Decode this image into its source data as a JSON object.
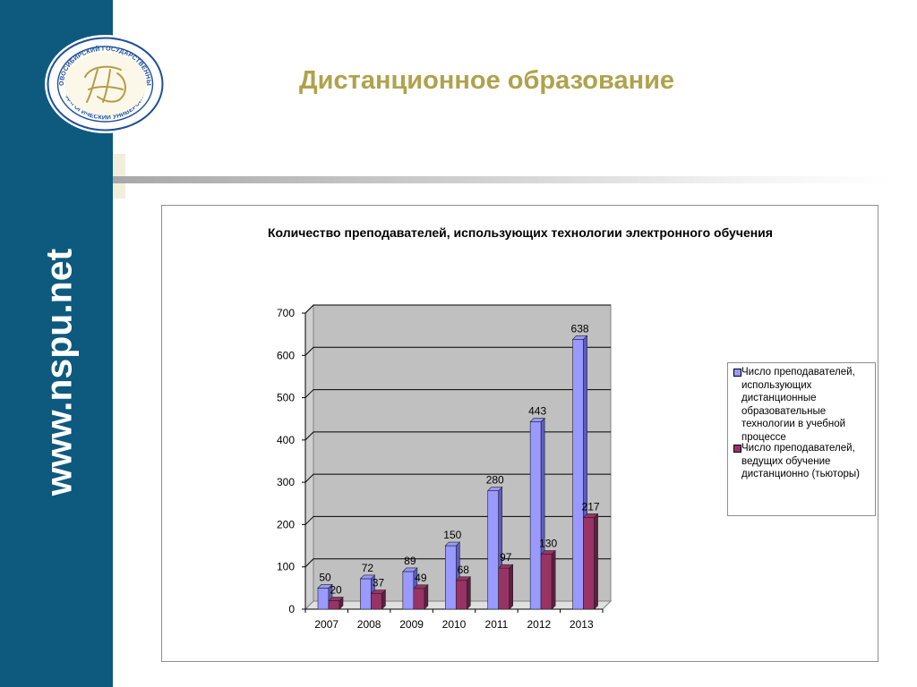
{
  "page": {
    "title": "Дистанционное образование",
    "side_url": "www.nspu.net"
  },
  "logo": {
    "arc_text_top": "НОВОСИБИРСКИЙ ГОСУДАРСТВЕННЫЙ",
    "arc_text_bottom": "ПЕДАГОГИЧЕСКИЙ УНИВЕРСИТЕТ"
  },
  "colors": {
    "sidebar": "#0d5a7e",
    "title": "#b0a24c",
    "series1": "#9999ff",
    "series1_side": "#5c5cc4",
    "series2": "#993366",
    "series2_side": "#5e1f3f",
    "plot_bg": "#c0c0c0"
  },
  "chart_data": {
    "type": "bar",
    "title": "Количество преподавателей, использующих технологии электронного обучения",
    "categories": [
      "2007",
      "2008",
      "2009",
      "2010",
      "2011",
      "2012",
      "2013"
    ],
    "ylim": [
      0,
      700
    ],
    "yticks": [
      0,
      100,
      200,
      300,
      400,
      500,
      600,
      700
    ],
    "grid": true,
    "legend_position": "right",
    "series": [
      {
        "name": "Число преподавателей, использующих дистанционные образовательные технологии в учебной процессе",
        "values": [
          50,
          72,
          89,
          150,
          280,
          443,
          638
        ]
      },
      {
        "name": "Число преподавателей, ведущих обучение дистанционно (тьюторы)",
        "values": [
          20,
          37,
          49,
          68,
          97,
          130,
          217
        ]
      }
    ]
  }
}
